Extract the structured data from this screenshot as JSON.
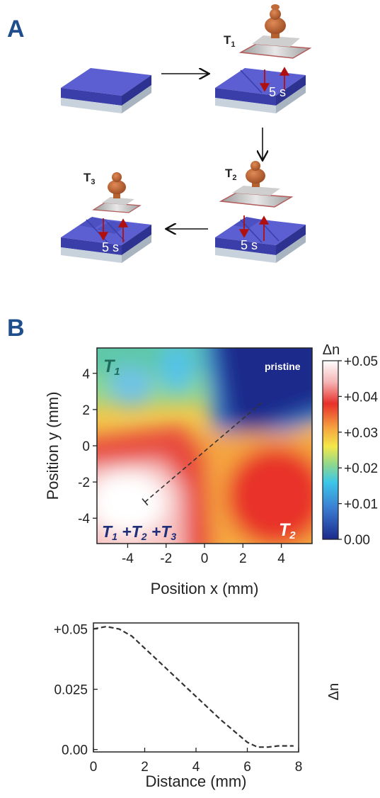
{
  "panel_a": {
    "letter": "A",
    "stamps": [
      {
        "label": "T",
        "sub": "1",
        "duration": "5 s"
      },
      {
        "label": "T",
        "sub": "2",
        "duration": "5 s"
      },
      {
        "label": "T",
        "sub": "3",
        "duration": "5 s"
      }
    ]
  },
  "panel_b": {
    "letter": "B",
    "region_labels": {
      "t1_main": "T",
      "t1_sub": "1",
      "t2_main": "T",
      "t2_sub": "2",
      "combo_parts": [
        "T",
        "1",
        " +T",
        "2",
        " +T",
        "3"
      ],
      "pristine": "pristine"
    }
  },
  "chart_data": [
    {
      "type": "heatmap",
      "xlabel": "Position x (mm)",
      "ylabel": "Position y (mm)",
      "xlim": [
        -5.6,
        5.6
      ],
      "ylim": [
        -5.4,
        5.4
      ],
      "x_ticks": [
        "-4",
        "-2",
        "0",
        "2",
        "4"
      ],
      "y_ticks": [
        "4",
        "2",
        "0",
        "-2",
        "-4"
      ],
      "colorbar": {
        "title": "Δn",
        "ticks": [
          "+0.05",
          "+0.04",
          "+0.03",
          "+0.02",
          "+0.01",
          "0.00"
        ],
        "range": [
          0.0,
          0.05
        ],
        "colors": [
          "#ffffff",
          "#f5b4b4",
          "#e8302a",
          "#f5a640",
          "#f4e84a",
          "#8fd88c",
          "#3cc7e8",
          "#3b7fd4",
          "#1c2a8c"
        ]
      },
      "line_profile": {
        "from": [
          -3.1,
          -3.1
        ],
        "to": [
          3.0,
          2.4
        ]
      }
    },
    {
      "type": "line",
      "xlabel": "Distance (mm)",
      "ylabel": "Δn",
      "xlim": [
        0,
        8
      ],
      "ylim": [
        -0.001,
        0.0525
      ],
      "x_ticks": [
        "0",
        "2",
        "4",
        "6",
        "8"
      ],
      "y_ticks": [
        "+0.05",
        "0.025",
        "0.00"
      ],
      "series": [
        {
          "x": [
            0,
            0.5,
            1.0,
            1.5,
            2.0,
            3.0,
            4.0,
            5.0,
            6.0,
            6.4,
            6.8,
            7.2,
            7.6,
            7.8
          ],
          "values": [
            0.05,
            0.051,
            0.05,
            0.047,
            0.042,
            0.032,
            0.022,
            0.012,
            0.003,
            0.001,
            0.001,
            0.0015,
            0.0015,
            0.0015
          ]
        }
      ]
    }
  ]
}
